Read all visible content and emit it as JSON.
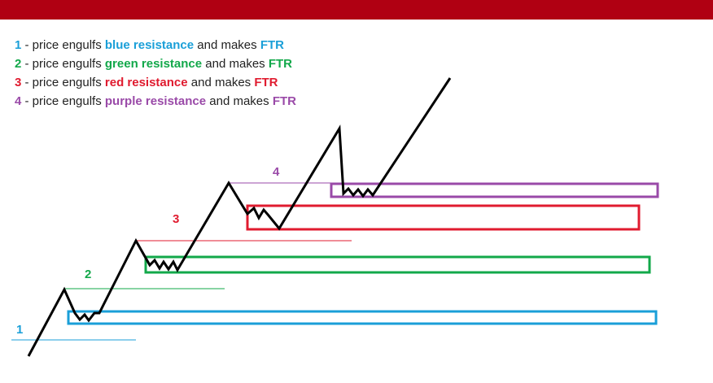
{
  "header_bar": {
    "color": "#b00012"
  },
  "legend": [
    {
      "num": "1",
      "pre": " - price engulfs ",
      "highlight": "blue resistance",
      "mid": " and makes ",
      "ftr": "FTR",
      "color": "#1a9fd8"
    },
    {
      "num": "2",
      "pre": " - price engulfs ",
      "highlight": "green resistance",
      "mid": " and makes ",
      "ftr": "FTR",
      "color": "#12a84a"
    },
    {
      "num": "3",
      "pre": " - price engulfs ",
      "highlight": "red resistance",
      "mid": " and makes ",
      "ftr": "FTR",
      "color": "#e01b2f"
    },
    {
      "num": "4",
      "pre": " - price engulfs ",
      "highlight": "purple resistance",
      "mid": " and makes ",
      "ftr": "FTR",
      "color": "#9a4aa8"
    }
  ],
  "zones": [
    {
      "label": "1",
      "color": "#1a9fd8",
      "icon": "blue-resistance-zone"
    },
    {
      "label": "2",
      "color": "#12a84a",
      "icon": "green-resistance-zone"
    },
    {
      "label": "3",
      "color": "#e01b2f",
      "icon": "red-resistance-zone"
    },
    {
      "label": "4",
      "color": "#9a4aa8",
      "icon": "purple-resistance-zone"
    }
  ],
  "price_path_color": "#000000"
}
